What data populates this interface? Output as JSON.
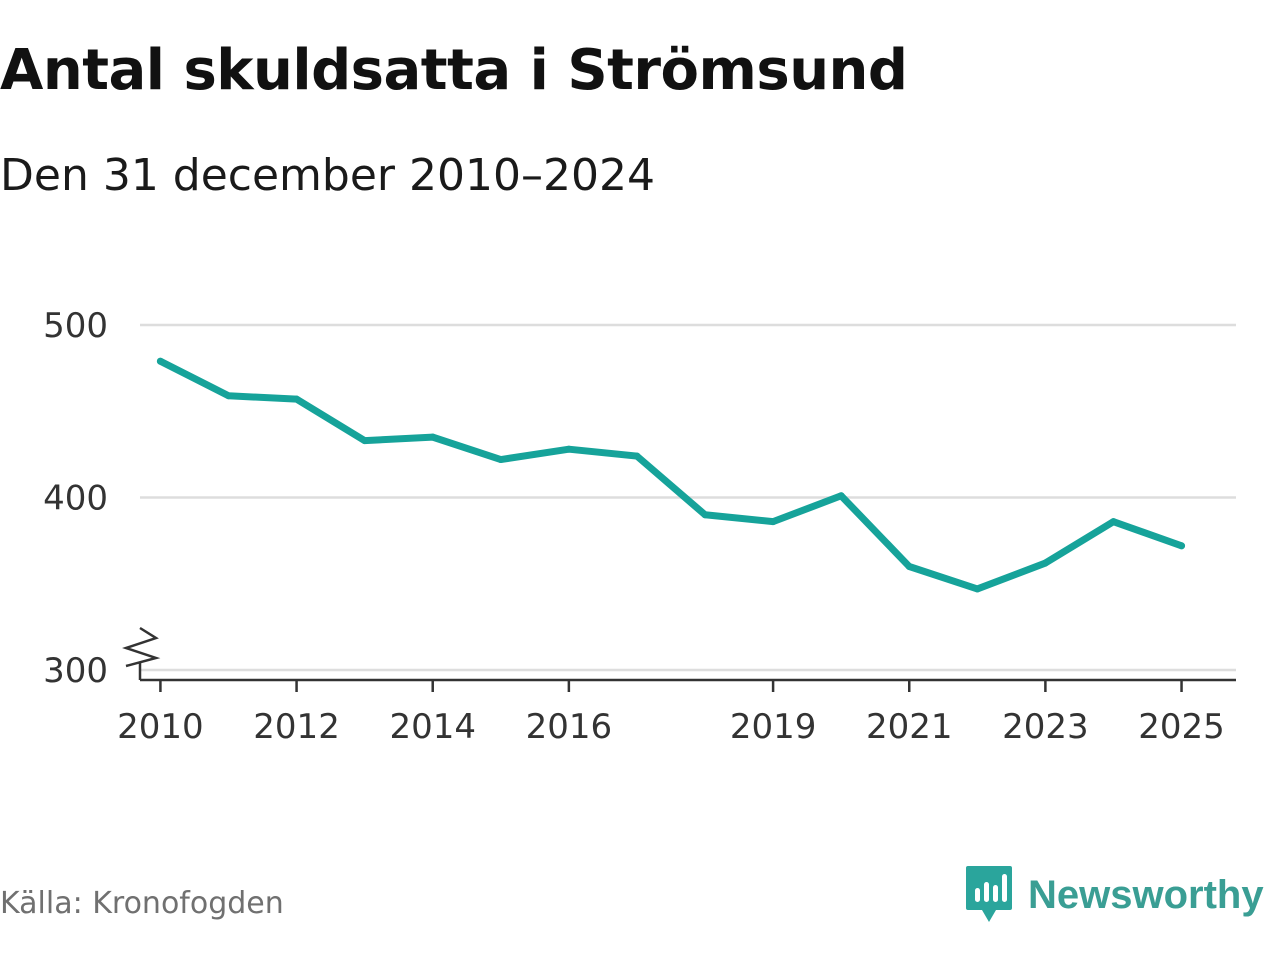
{
  "title": "Antal skuldsatta i Strömsund",
  "subtitle": "Den 31 december 2010–2024",
  "source": "Källa: Kronofogden",
  "brand": {
    "name": "Newsworthy",
    "icon": "newsworthy-logo-icon",
    "color": "#2aa59c"
  },
  "colors": {
    "line": "#16a39a",
    "grid": "#dddddd",
    "axis": "#333333"
  },
  "chart_data": {
    "type": "line",
    "title": "Antal skuldsatta i Strömsund",
    "subtitle": "Den 31 december 2010–2024",
    "xlabel": "",
    "ylabel": "",
    "xlim": [
      2009.7,
      2025.8
    ],
    "ylim": [
      300,
      500
    ],
    "y_axis_break": true,
    "grid": true,
    "x_ticks": [
      2010,
      2012,
      2014,
      2016,
      2019,
      2021,
      2023,
      2025
    ],
    "x_tick_labels": [
      "2010",
      "2012",
      "2014",
      "2016",
      "2019",
      "2021",
      "2023",
      "2025"
    ],
    "y_ticks": [
      300,
      400,
      500
    ],
    "y_tick_labels": [
      "300",
      "400",
      "500"
    ],
    "series": [
      {
        "name": "Antal skuldsatta",
        "x": [
          2010,
          2011,
          2012,
          2013,
          2014,
          2015,
          2016,
          2017,
          2018,
          2019,
          2020,
          2021,
          2022,
          2023,
          2024,
          2025
        ],
        "values": [
          479,
          459,
          457,
          433,
          435,
          422,
          428,
          424,
          390,
          386,
          401,
          360,
          347,
          362,
          386,
          372
        ]
      }
    ]
  }
}
